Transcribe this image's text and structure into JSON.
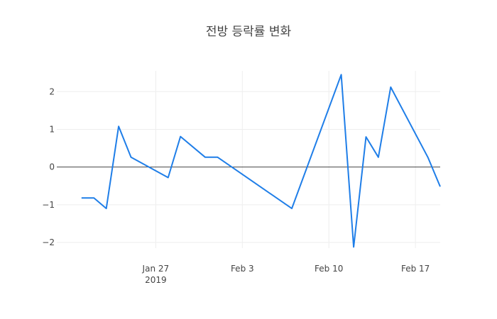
{
  "chart_data": {
    "type": "line",
    "title": "전방 등락률 변화",
    "xlabel": "",
    "ylabel": "",
    "x_axis": {
      "range": [
        "2019-01-19",
        "2019-02-19"
      ],
      "ticks": [
        {
          "date": "2019-01-27",
          "label": "Jan 27",
          "sublabel": "2019"
        },
        {
          "date": "2019-02-03",
          "label": "Feb 3",
          "sublabel": ""
        },
        {
          "date": "2019-02-10",
          "label": "Feb 10",
          "sublabel": ""
        },
        {
          "date": "2019-02-17",
          "label": "Feb 17",
          "sublabel": ""
        }
      ]
    },
    "y_axis": {
      "range": [
        -2.15,
        2.55
      ],
      "ticks": [
        {
          "value": 2,
          "label": "2"
        },
        {
          "value": 1,
          "label": "1"
        },
        {
          "value": 0,
          "label": "0"
        },
        {
          "value": -1,
          "label": "−1"
        },
        {
          "value": -2,
          "label": "−2"
        }
      ],
      "zeroline": true
    },
    "grid": true,
    "line_color": "#1f7ee8",
    "series": [
      {
        "points": [
          {
            "x": "2019-01-21",
            "y": -0.82
          },
          {
            "x": "2019-01-22",
            "y": -0.82
          },
          {
            "x": "2019-01-23",
            "y": -1.1
          },
          {
            "x": "2019-01-24",
            "y": 1.08
          },
          {
            "x": "2019-01-25",
            "y": 0.26
          },
          {
            "x": "2019-01-28",
            "y": -0.28
          },
          {
            "x": "2019-01-29",
            "y": 0.81
          },
          {
            "x": "2019-01-31",
            "y": 0.26
          },
          {
            "x": "2019-02-01",
            "y": 0.26
          },
          {
            "x": "2019-02-07",
            "y": -1.1
          },
          {
            "x": "2019-02-11",
            "y": 2.45
          },
          {
            "x": "2019-02-12",
            "y": -2.12
          },
          {
            "x": "2019-02-13",
            "y": 0.8
          },
          {
            "x": "2019-02-14",
            "y": 0.26
          },
          {
            "x": "2019-02-15",
            "y": 2.12
          },
          {
            "x": "2019-02-18",
            "y": 0.26
          },
          {
            "x": "2019-02-19",
            "y": -0.52
          }
        ]
      }
    ]
  }
}
